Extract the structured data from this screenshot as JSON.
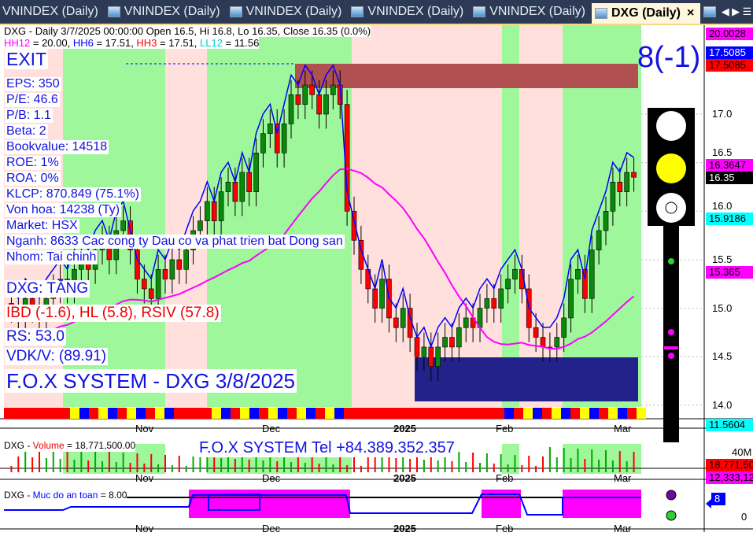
{
  "tabs": [
    {
      "label": "VNINDEX (Daily)"
    },
    {
      "label": "VNINDEX (Daily)"
    },
    {
      "label": "VNINDEX (Daily)"
    },
    {
      "label": "VNINDEX (Daily)"
    },
    {
      "label": "VNINDEX (Daily)"
    },
    {
      "label": "DXG (Daily)",
      "active": true,
      "close": "×"
    },
    {
      "label": "VNINDEX (Daily"
    }
  ],
  "chart": {
    "title": "DXG - Daily 3/7/2025 00:00:00 Open 16.5, Hi 16.8, Lo 16.35, Close 16.35 (0.0%)",
    "hh12_label": "HH12",
    "hh12_value": " = 20.00, ",
    "hh6_label": "HH6",
    "hh6_value": " = 17.51, ",
    "hh3_label": "HH3",
    "hh3_value": " = 17.51, ",
    "ll12_label": "LL12",
    "ll12_value": " = 11.56",
    "exit": "EXIT",
    "signal": "8(-1)",
    "fundamentals": [
      "EPS: 350",
      "P/E: 46.6",
      "P/B: 1.1",
      "Beta: 2",
      "Bookvalue: 14518",
      "ROE: 1%",
      "ROA: 0%",
      "KLCP: 870.849 (75.1%)",
      "Von hoa: 14238 (Ty)",
      "Market: HSX",
      "Nganh: 8633 Cac cong ty Dau co va phat trien bat Dong san",
      "Nhom: Tai chinh"
    ],
    "trend": "DXG: TĂNG",
    "ibd": "IBD (-1.6), HL (5.8), RSIV (57.8)",
    "rs": "RS: 53.0",
    "vdk": "VDK/V:  (89.91)",
    "brand": "F.O.X SYSTEM - DXG 3/8/2025",
    "price_ticks": [
      "17.0",
      "16.5",
      "16.0",
      "15.5",
      "15.0",
      "14.5",
      "14.0"
    ],
    "price_labels": [
      {
        "text": "20.0028",
        "bg": "#ff00ff"
      },
      {
        "text": "17.5085",
        "bg": "#0000ff",
        "fg": "#fff"
      },
      {
        "text": "17.5085",
        "bg": "#ff0000"
      },
      {
        "text": "16.3647",
        "bg": "#ff00ff"
      },
      {
        "text": "16.35",
        "bg": "#000",
        "fg": "#fff"
      },
      {
        "text": "15.9186",
        "bg": "#00ffff"
      },
      {
        "text": "15.365",
        "bg": "#ff00ff"
      },
      {
        "text": "11.5604",
        "bg": "#00ffff"
      }
    ],
    "month_labels": [
      "Nov",
      "Dec",
      "2025",
      "Feb",
      "Mar"
    ],
    "traffic_light": {
      "top": "#ffffff",
      "middle": "#ffff00",
      "bottom": "#ffffff"
    }
  },
  "volume": {
    "label_prefix": "DXG - ",
    "label_name": "Volume",
    "label_value": " = 18,771,500.00",
    "contact": "F.O.X SYSTEM Tel +84.389.352.357",
    "tick": "40M",
    "last": "18,771,50",
    "avg": "12,333,12"
  },
  "safety": {
    "label_prefix": "DXG - ",
    "label_name": "Muc do an toan",
    "label_value": " = 8.00",
    "tick": "0",
    "value": "8"
  },
  "chart_data": {
    "type": "candlestick",
    "ylim": [
      13.9,
      17.9
    ],
    "closes": [
      15.0,
      14.9,
      15.1,
      15.0,
      14.9,
      15.1,
      15.2,
      15.3,
      15.2,
      15.4,
      15.5,
      15.4,
      15.6,
      15.7,
      15.5,
      15.8,
      15.9,
      15.6,
      15.3,
      15.2,
      15.1,
      15.4,
      15.3,
      15.5,
      15.4,
      15.6,
      15.8,
      15.9,
      16.1,
      15.9,
      16.2,
      16.3,
      16.1,
      16.4,
      16.2,
      16.6,
      16.8,
      16.9,
      16.6,
      16.9,
      17.2,
      17.1,
      17.3,
      17.2,
      17.0,
      17.2,
      17.3,
      17.1,
      16.0,
      15.7,
      15.4,
      15.2,
      15.0,
      15.3,
      14.9,
      14.8,
      15.0,
      14.7,
      14.5,
      14.6,
      14.4,
      14.6,
      14.7,
      14.6,
      14.8,
      14.9,
      14.8,
      15.0,
      15.1,
      15.0,
      15.2,
      15.3,
      15.4,
      15.2,
      14.8,
      14.7,
      14.6,
      14.6,
      14.7,
      14.9,
      15.3,
      15.4,
      15.1,
      15.6,
      15.8,
      16.0,
      16.3,
      16.2,
      16.4,
      16.35
    ]
  }
}
